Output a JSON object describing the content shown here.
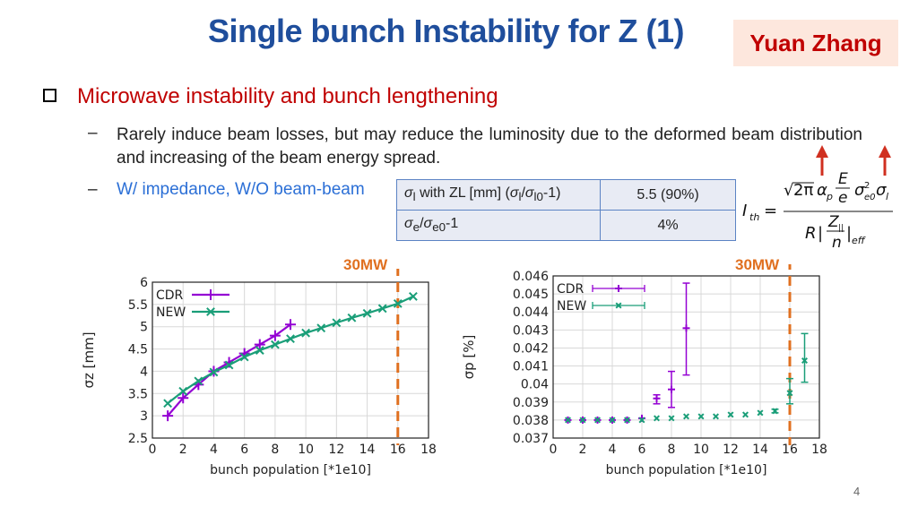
{
  "slide": {
    "title": "Single bunch Instability for Z (1)",
    "author": "Yuan Zhang",
    "page_number": "4"
  },
  "bullet": {
    "text": "Microwave instability and bunch lengthening",
    "sub1": "Rarely induce beam losses, but may reduce the luminosity due to the deformed beam distribution and increasing of the beam energy spread.",
    "sub2": "W/ impedance, W/O beam-beam"
  },
  "param_table": {
    "rows": [
      {
        "label": "σl with ZL [mm] (σl/σl0-1)",
        "value": "5.5 (90%)"
      },
      {
        "label": "σe/σe0-1",
        "value": "4%"
      }
    ]
  },
  "formula": {
    "lhs": "Ith",
    "numerator": "√2π αp (E/e) σe0² σl",
    "denominator": "R |Z||/n|eff"
  },
  "power_marker": "30MW",
  "colors": {
    "title": "#1f4e9c",
    "accent_red": "#c00000",
    "cdr": "#9400d3",
    "new": "#1a9e78",
    "marker": "#e07020"
  },
  "chart_data": [
    {
      "type": "line",
      "xlabel": "bunch population [*1e10]",
      "ylabel": "σz [mm]",
      "xlim": [
        0,
        18
      ],
      "ylim": [
        2.5,
        6
      ],
      "xticks": [
        "0",
        "2",
        "4",
        "6",
        "8",
        "10",
        "12",
        "14",
        "16",
        "18"
      ],
      "yticks": [
        "2.5",
        "3",
        "3.5",
        "4",
        "4.5",
        "5",
        "5.5",
        "6"
      ],
      "grid": true,
      "legend": "top-left",
      "vline": {
        "x": 16,
        "label": "30MW"
      },
      "series": [
        {
          "name": "CDR",
          "x": [
            1,
            2,
            3,
            4,
            5,
            6,
            7,
            8,
            9
          ],
          "values": [
            3.0,
            3.4,
            3.7,
            4.0,
            4.2,
            4.4,
            4.6,
            4.8,
            5.05
          ]
        },
        {
          "name": "NEW",
          "x": [
            1,
            2,
            3,
            4,
            5,
            6,
            7,
            8,
            9,
            10,
            11,
            12,
            13,
            14,
            15,
            16,
            17
          ],
          "values": [
            3.28,
            3.55,
            3.78,
            3.98,
            4.14,
            4.32,
            4.47,
            4.6,
            4.73,
            4.86,
            4.97,
            5.09,
            5.2,
            5.3,
            5.41,
            5.52,
            5.68
          ]
        }
      ]
    },
    {
      "type": "scatter",
      "xlabel": "bunch population [*1e10]",
      "ylabel": "σp [%]",
      "xlim": [
        0,
        18
      ],
      "ylim": [
        0.037,
        0.046
      ],
      "xticks": [
        "0",
        "2",
        "4",
        "6",
        "8",
        "10",
        "12",
        "14",
        "16",
        "18"
      ],
      "yticks": [
        "0.037",
        "0.038",
        "0.039",
        "0.04",
        "0.041",
        "0.042",
        "0.043",
        "0.044",
        "0.045",
        "0.046"
      ],
      "grid": true,
      "legend": "top-left",
      "vline": {
        "x": 16,
        "label": "30MW"
      },
      "series": [
        {
          "name": "CDR",
          "x": [
            1,
            2,
            3,
            4,
            5,
            6,
            7,
            8,
            9
          ],
          "values": [
            0.038,
            0.038,
            0.038,
            0.038,
            0.038,
            0.0381,
            0.0392,
            0.0397,
            0.0431
          ],
          "err_low": [
            0,
            0,
            0,
            0,
            0,
            0,
            0.0389,
            0.0387,
            0.0405
          ],
          "err_high": [
            0,
            0,
            0,
            0,
            0,
            0,
            0.0394,
            0.0407,
            0.0456
          ]
        },
        {
          "name": "NEW",
          "x": [
            1,
            2,
            3,
            4,
            5,
            6,
            7,
            8,
            9,
            10,
            11,
            12,
            13,
            14,
            15,
            16,
            17
          ],
          "values": [
            0.038,
            0.038,
            0.038,
            0.038,
            0.038,
            0.038,
            0.0381,
            0.0381,
            0.0382,
            0.0382,
            0.0382,
            0.0383,
            0.0383,
            0.0384,
            0.0385,
            0.0395,
            0.0413
          ],
          "err_low": [
            0,
            0,
            0,
            0,
            0,
            0,
            0,
            0,
            0,
            0,
            0,
            0,
            0,
            0,
            0.0384,
            0.0389,
            0.0401
          ],
          "err_high": [
            0,
            0,
            0,
            0,
            0,
            0,
            0,
            0,
            0,
            0,
            0,
            0,
            0,
            0,
            0.0386,
            0.0403,
            0.0428
          ]
        }
      ]
    }
  ]
}
